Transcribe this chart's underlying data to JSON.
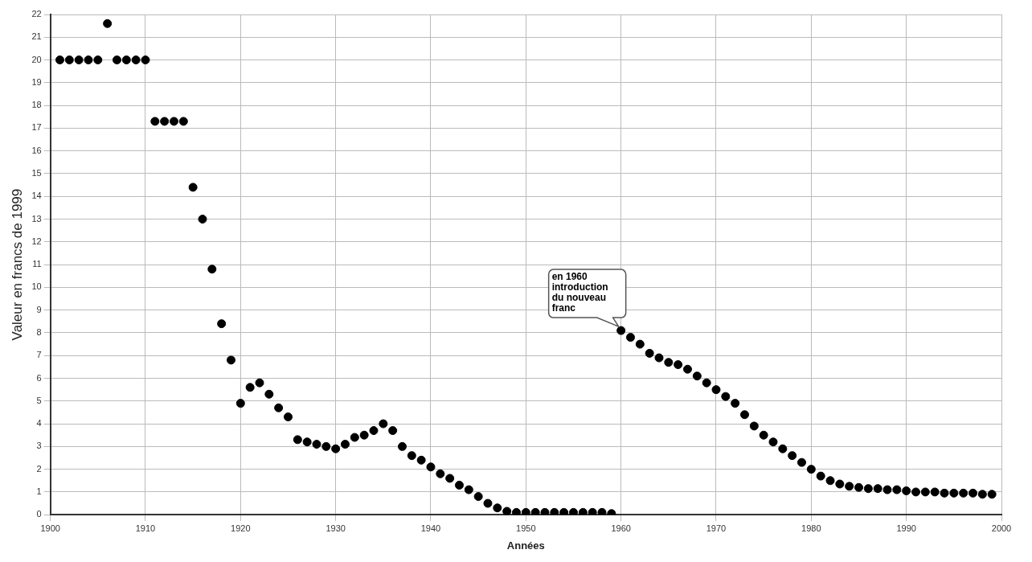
{
  "chart_data": {
    "type": "scatter",
    "xlabel": "Années",
    "ylabel": "Valeur en francs de 1999",
    "x": [
      1901,
      1902,
      1903,
      1904,
      1905,
      1906,
      1907,
      1908,
      1909,
      1910,
      1911,
      1912,
      1913,
      1914,
      1915,
      1916,
      1917,
      1918,
      1919,
      1920,
      1921,
      1922,
      1923,
      1924,
      1925,
      1926,
      1927,
      1928,
      1929,
      1930,
      1931,
      1932,
      1933,
      1934,
      1935,
      1936,
      1937,
      1938,
      1939,
      1940,
      1941,
      1942,
      1943,
      1944,
      1945,
      1946,
      1947,
      1948,
      1949,
      1950,
      1951,
      1952,
      1953,
      1954,
      1955,
      1956,
      1957,
      1958,
      1959,
      1960,
      1961,
      1962,
      1963,
      1964,
      1965,
      1966,
      1967,
      1968,
      1969,
      1970,
      1971,
      1972,
      1973,
      1974,
      1975,
      1976,
      1977,
      1978,
      1979,
      1980,
      1981,
      1982,
      1983,
      1984,
      1985,
      1986,
      1987,
      1988,
      1989,
      1990,
      1991,
      1992,
      1993,
      1994,
      1995,
      1996,
      1997,
      1998,
      1999
    ],
    "series": [
      {
        "color": "#000000",
        "values": [
          20,
          20,
          20,
          20,
          20,
          21.6,
          20,
          20,
          20,
          20,
          17.3,
          17.3,
          17.3,
          17.3,
          14.4,
          13,
          10.8,
          8.4,
          6.8,
          4.9,
          5.6,
          5.8,
          5.3,
          4.7,
          4.3,
          3.3,
          3.2,
          3.1,
          3,
          2.9,
          3.1,
          3.4,
          3.5,
          3.7,
          4,
          3.7,
          3,
          2.6,
          2.4,
          2.1,
          1.8,
          1.6,
          1.3,
          1.1,
          0.8,
          0.5,
          0.3,
          0.15,
          0.1,
          0.1,
          0.1,
          0.1,
          0.1,
          0.1,
          0.1,
          0.1,
          0.1,
          0.1,
          0.05,
          8.1,
          7.8,
          7.5,
          7.1,
          6.9,
          6.7,
          6.6,
          6.4,
          6.1,
          5.8,
          5.5,
          5.2,
          4.9,
          4.4,
          3.9,
          3.5,
          3.2,
          2.9,
          2.6,
          2.3,
          2,
          1.7,
          1.5,
          1.35,
          1.25,
          1.2,
          1.15,
          1.15,
          1.1,
          1.1,
          1.05,
          1,
          1,
          1,
          0.95,
          0.95,
          0.95,
          0.95,
          0.9,
          0.9
        ]
      }
    ],
    "xlim": [
      1900,
      2000
    ],
    "xticks": [
      1900,
      1910,
      1920,
      1930,
      1940,
      1950,
      1960,
      1970,
      1980,
      1990,
      2000
    ],
    "ylim": [
      0,
      22
    ],
    "yticks": [
      0,
      1,
      2,
      3,
      4,
      5,
      6,
      7,
      8,
      9,
      10,
      11,
      12,
      13,
      14,
      15,
      16,
      17,
      18,
      19,
      20,
      21,
      22
    ],
    "grid": true,
    "marker": "circle",
    "legend": false,
    "annotations": [
      {
        "text": "en 1960 introduction du nouveau franc",
        "x": 1960,
        "y": 8.1
      }
    ]
  }
}
